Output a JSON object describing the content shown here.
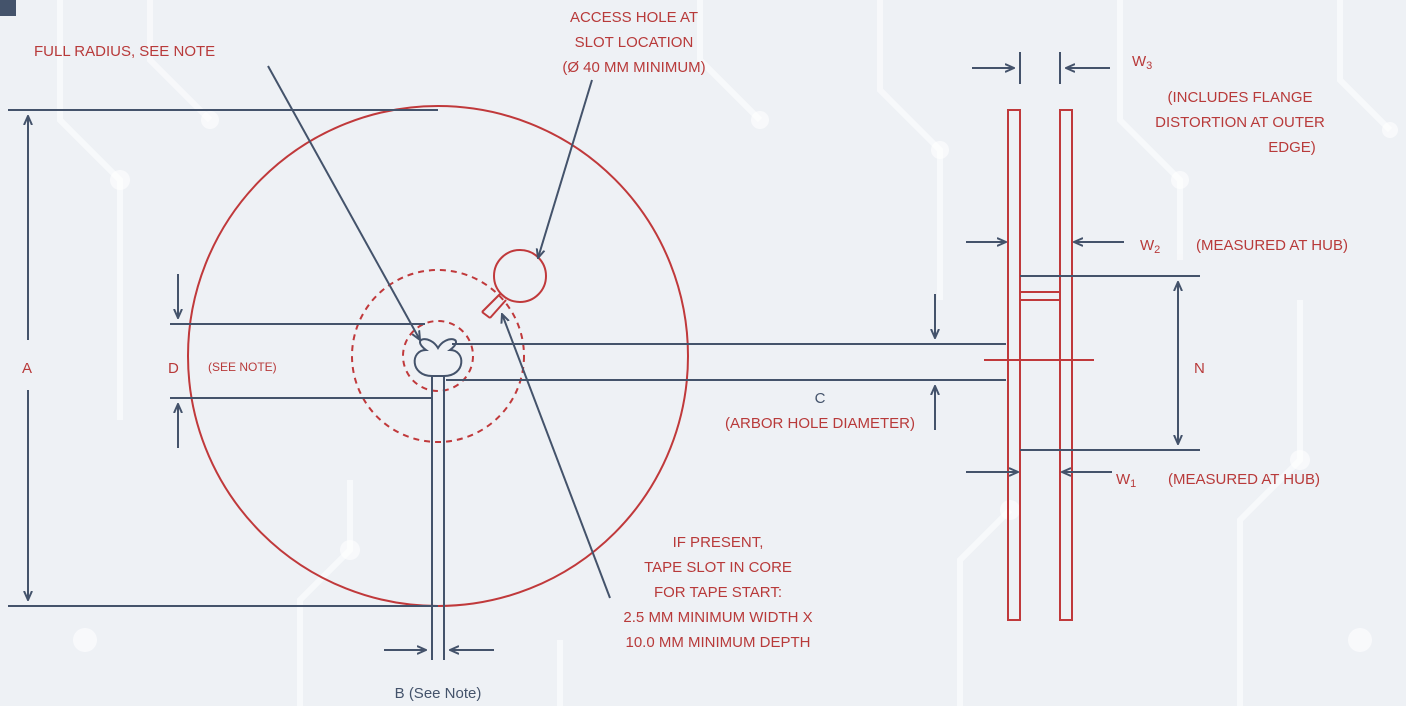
{
  "labels": {
    "full_radius": "FULL RADIUS, SEE NOTE",
    "access_hole": [
      "ACCESS HOLE AT",
      "SLOT LOCATION",
      "(Ø 40 MM MINIMUM)"
    ],
    "tape_slot": [
      "IF PRESENT,",
      "TAPE SLOT IN CORE",
      "FOR TAPE START:",
      "2.5 MM MINIMUM WIDTH X",
      "10.0 MM MINIMUM DEPTH"
    ],
    "dim_a": "A",
    "dim_b": "B (See Note)",
    "dim_c": "C",
    "dim_c_sub": "(ARBOR HOLE DIAMETER)",
    "dim_d": "D",
    "dim_d_note": "(SEE NOTE)",
    "dim_n": "N",
    "w3": "W3",
    "w3_note": [
      "(INCLUDES FLANGE",
      "DISTORTION AT OUTER",
      "EDGE)"
    ],
    "w2": "W2",
    "w2_note": "(MEASURED AT HUB)",
    "w1": "W1",
    "w1_note": "(MEASURED AT HUB)"
  },
  "colors": {
    "red": "#c0393b",
    "navy": "#44536b",
    "background": "#eef1f5"
  }
}
